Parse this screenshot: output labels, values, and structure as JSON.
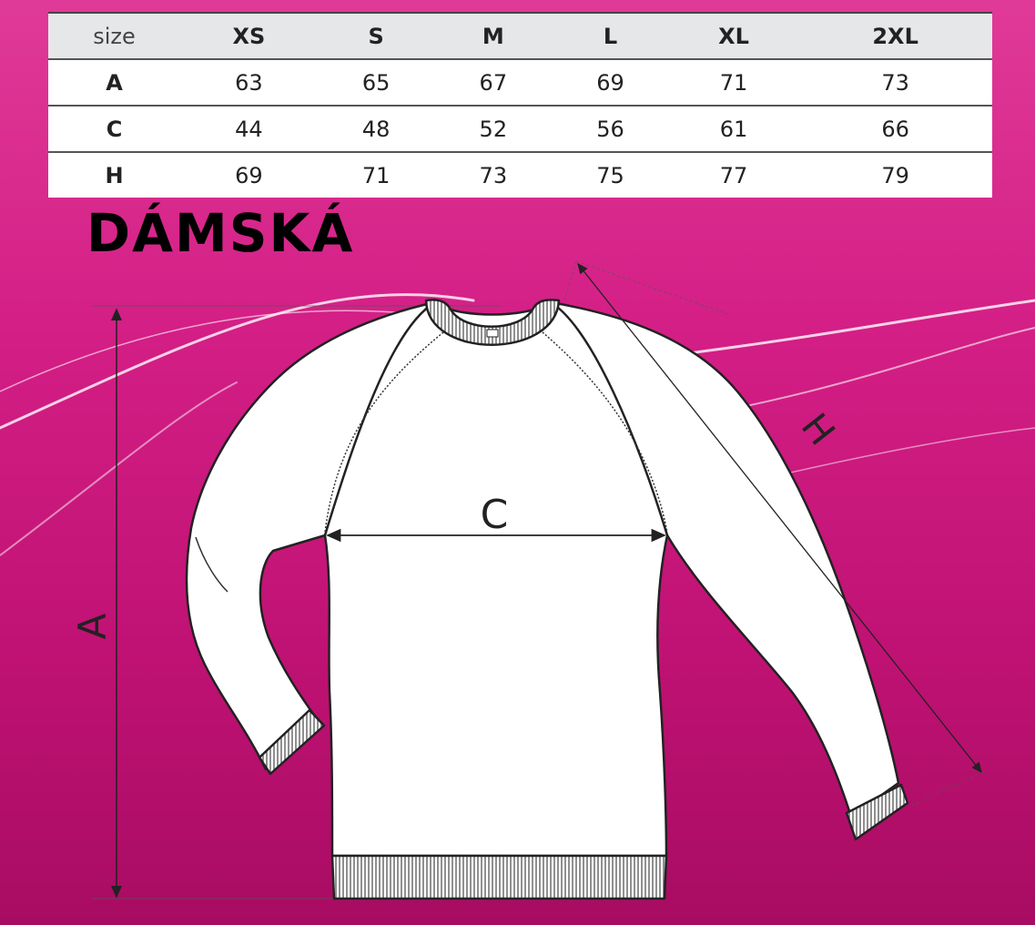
{
  "size_table": {
    "header_label": "size",
    "sizes": [
      "XS",
      "S",
      "M",
      "L",
      "XL",
      "2XL"
    ],
    "rows": [
      {
        "label": "A",
        "values": [
          "63",
          "65",
          "67",
          "69",
          "71",
          "73"
        ]
      },
      {
        "label": "C",
        "values": [
          "44",
          "48",
          "52",
          "56",
          "61",
          "66"
        ]
      },
      {
        "label": "H",
        "values": [
          "69",
          "71",
          "73",
          "75",
          "77",
          "79"
        ]
      }
    ]
  },
  "title": "DÁMSKÁ",
  "diagram": {
    "label_a": "A",
    "label_c": "C",
    "label_h": "H"
  },
  "colors": {
    "background": "#d41f86",
    "table_header": "#e6e7e9"
  }
}
